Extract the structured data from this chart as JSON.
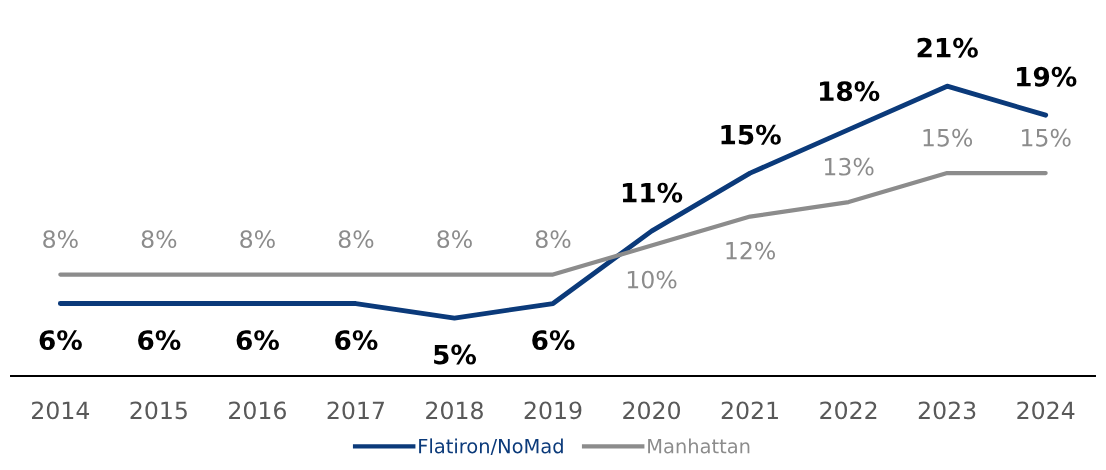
{
  "chart_data": {
    "type": "line",
    "categories": [
      "2014",
      "2015",
      "2016",
      "2017",
      "2018",
      "2019",
      "2020",
      "2021",
      "2022",
      "2023",
      "2024"
    ],
    "series": [
      {
        "name": "Flatiron/NoMad",
        "color": "#0b3a7a",
        "values": [
          6,
          6,
          6,
          6,
          5,
          6,
          11,
          15,
          18,
          21,
          19
        ],
        "value_labels": [
          "6%",
          "6%",
          "6%",
          "6%",
          "5%",
          "6%",
          "11%",
          "15%",
          "18%",
          "21%",
          "19%"
        ]
      },
      {
        "name": "Manhattan",
        "color": "#8c8c8c",
        "values": [
          8,
          8,
          8,
          8,
          8,
          8,
          10,
          12,
          13,
          15,
          15
        ],
        "value_labels": [
          "8%",
          "8%",
          "8%",
          "8%",
          "8%",
          "8%",
          "10%",
          "12%",
          "13%",
          "15%",
          "15%"
        ]
      }
    ],
    "legend": "bottom",
    "grid": false,
    "marker": "none",
    "line_style": "solid",
    "tick_labels": "x"
  }
}
